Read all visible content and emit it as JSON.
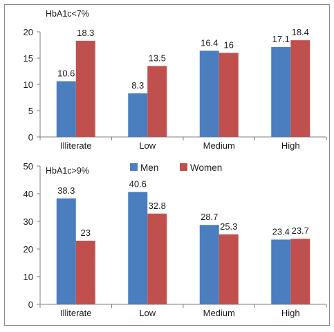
{
  "colors": {
    "men": "#4a7ebf",
    "women": "#c0504d",
    "axis": "#7f7f7f",
    "frame": "#8c8c8c"
  },
  "legend_placement": "top-center of lower panel",
  "chart_data": [
    {
      "type": "bar",
      "title": "HbA1c<7%",
      "xlabel": "",
      "ylabel": "",
      "categories": [
        "Illiterate",
        "Low",
        "Medium",
        "High"
      ],
      "series": [
        {
          "name": "Men",
          "values": [
            10.6,
            8.3,
            16.4,
            17.1
          ]
        },
        {
          "name": "Women",
          "values": [
            18.3,
            13.5,
            16,
            18.4
          ]
        }
      ],
      "data_labels": [
        [
          "10.6",
          "8.3",
          "16.4",
          "17.1"
        ],
        [
          "18.3",
          "13.5",
          "16",
          "18.4"
        ]
      ],
      "ylim": [
        0,
        20
      ],
      "yticks": [
        "0",
        "5",
        "10",
        "15",
        "20"
      ],
      "grid": false,
      "legend": false
    },
    {
      "type": "bar",
      "title": "HbA1c>9%",
      "xlabel": "",
      "ylabel": "",
      "categories": [
        "Illiterate",
        "Low",
        "Medium",
        "High"
      ],
      "series": [
        {
          "name": "Men",
          "values": [
            38.3,
            40.6,
            28.7,
            23.4
          ]
        },
        {
          "name": "Women",
          "values": [
            23,
            32.8,
            25.3,
            23.7
          ]
        }
      ],
      "data_labels": [
        [
          "38.3",
          "40.6",
          "28.7",
          "23.4"
        ],
        [
          "23",
          "32.8",
          "25.3",
          "23.7"
        ]
      ],
      "ylim": [
        0,
        50
      ],
      "yticks": [
        "0",
        "10",
        "20",
        "30",
        "40",
        "50"
      ],
      "grid": false,
      "legend": true
    }
  ]
}
